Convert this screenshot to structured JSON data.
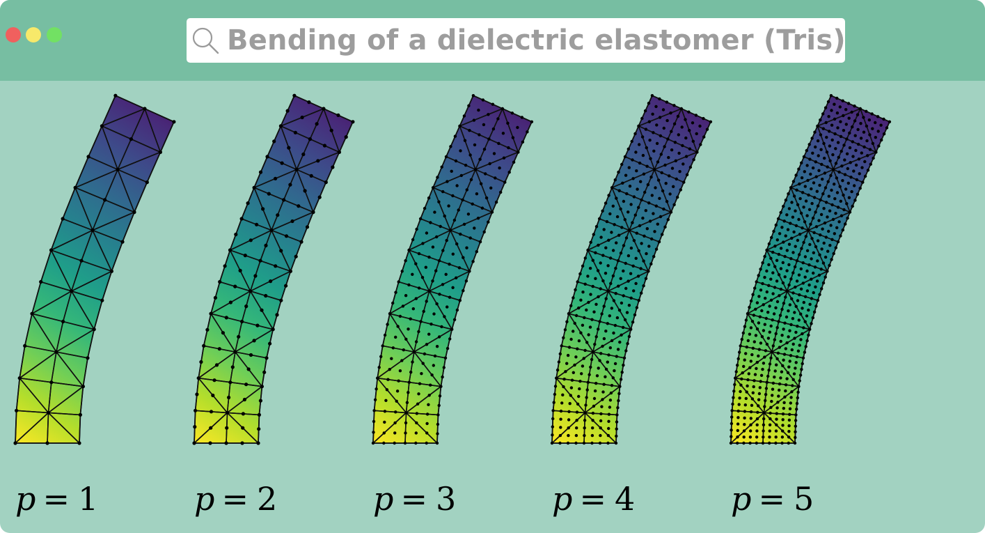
{
  "window": {
    "title": "Bending of a dielectric elastomer (Tris)",
    "controls": [
      {
        "name": "close",
        "color": "#f0605e"
      },
      {
        "name": "minimize",
        "color": "#f7e96a"
      },
      {
        "name": "maximize",
        "color": "#72e163"
      }
    ],
    "search_icon": "search-icon"
  },
  "figure": {
    "panels": [
      {
        "var": "p",
        "eq": "=",
        "order": "1"
      },
      {
        "var": "p",
        "eq": "=",
        "order": "2"
      },
      {
        "var": "p",
        "eq": "=",
        "order": "3"
      },
      {
        "var": "p",
        "eq": "=",
        "order": "4"
      },
      {
        "var": "p",
        "eq": "=",
        "order": "5"
      }
    ],
    "colormap": [
      "#fde725",
      "#b5de2b",
      "#6ece58",
      "#35b779",
      "#1f9e89",
      "#26828e",
      "#31688e",
      "#3e4989",
      "#482878",
      "#440154"
    ]
  }
}
